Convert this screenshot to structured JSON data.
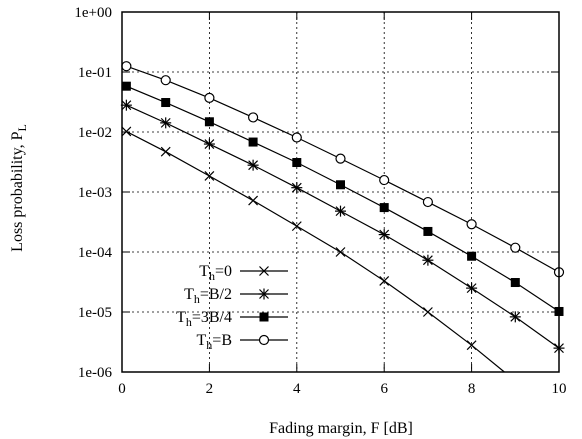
{
  "chart_data": {
    "type": "line",
    "xlabel": "Fading margin, F [dB]",
    "ylabel": "Loss probability, P",
    "ylabel_sub": "L",
    "xlim": [
      0,
      10
    ],
    "ylim": [
      1e-06,
      1
    ],
    "y_scale": "log",
    "grid": "dotted",
    "legend_position": "bottom-left",
    "x_ticks": [
      "0",
      "2",
      "4",
      "6",
      "8",
      "10"
    ],
    "y_ticks": [
      "1e-06",
      "1e-05",
      "1e-04",
      "1e-03",
      "1e-02",
      "1e-01",
      "1e+00"
    ],
    "series": [
      {
        "name": "T",
        "name_sub": "h",
        "name_rest": "=0",
        "marker": "x",
        "x": [
          0.1,
          1,
          2,
          3,
          4,
          5,
          6,
          7,
          8,
          8.75
        ],
        "y": [
          0.0102,
          0.0047,
          0.00185,
          0.00072,
          0.00027,
          0.0001,
          3.3e-05,
          1e-05,
          2.8e-06,
          1e-06
        ]
      },
      {
        "name": "T",
        "name_sub": "h",
        "name_rest": "=B/2",
        "marker": "asterisk",
        "x": [
          0.1,
          1,
          2,
          3,
          4,
          5,
          6,
          7,
          8,
          9,
          10
        ],
        "y": [
          0.028,
          0.0142,
          0.0063,
          0.0028,
          0.00118,
          0.00048,
          0.000195,
          7.3e-05,
          2.5e-05,
          8.3e-06,
          2.5e-06
        ]
      },
      {
        "name": "T",
        "name_sub": "h",
        "name_rest": "=3B/4",
        "marker": "filled-square",
        "x": [
          0.1,
          1,
          2,
          3,
          4,
          5,
          6,
          7,
          8,
          9,
          10
        ],
        "y": [
          0.058,
          0.031,
          0.0148,
          0.0068,
          0.0031,
          0.00132,
          0.00055,
          0.00022,
          8.5e-05,
          3.1e-05,
          1.02e-05
        ]
      },
      {
        "name": "T",
        "name_sub": "h",
        "name_rest": "=B",
        "marker": "open-circle",
        "x": [
          0.1,
          1,
          2,
          3,
          4,
          5,
          6,
          7,
          8,
          9,
          10
        ],
        "y": [
          0.125,
          0.073,
          0.037,
          0.0175,
          0.0081,
          0.0036,
          0.00158,
          0.00068,
          0.00029,
          0.000118,
          4.6e-05
        ]
      }
    ]
  }
}
